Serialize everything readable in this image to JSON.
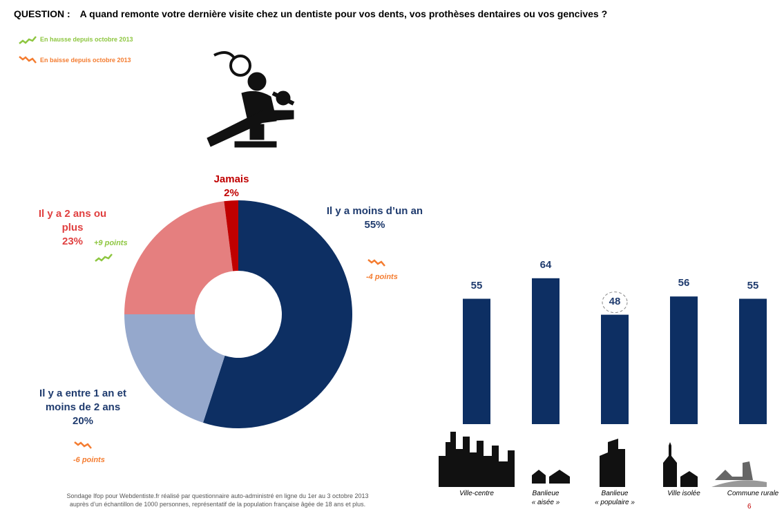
{
  "header": {
    "question_label": "QUESTION :",
    "question": "A quand remonte votre dernière visite chez un dentiste pour vos dents, vos prothèses dentaires ou vos gencives ?"
  },
  "legend": [
    {
      "name": "En hausse depuis octobre 2013",
      "color": "#8dc63f"
    },
    {
      "name": "En baisse depuis octobre 2013",
      "color": "#f47c30"
    }
  ],
  "chart_data": [
    {
      "type": "pie",
      "donut": true,
      "categories": [
        "Il y a moins d’un an",
        "Il y a entre 1 an et moins de 2 ans",
        "Il y a 2 ans ou plus",
        "Jamais"
      ],
      "values": [
        55,
        20,
        23,
        2
      ],
      "value_labels": [
        "55%",
        "20%",
        "23%",
        "2%"
      ],
      "colors": [
        "#0d2f63",
        "#95a8cc",
        "#e57f7f",
        "#c00000"
      ],
      "label_colors": [
        "#1f3b6e",
        "#1f3b6e",
        "#e04040",
        "#c00000"
      ],
      "change_labels": [
        "-4 points",
        "-6 points",
        "+9 points",
        null
      ]
    },
    {
      "type": "bar",
      "categories": [
        [
          "Ville-centre"
        ],
        [
          "Banlieue",
          "« aisée »"
        ],
        [
          "Banlieue",
          "« populaire »"
        ],
        [
          "Ville isolée"
        ],
        [
          "Commune rurale"
        ]
      ],
      "values": [
        55,
        64,
        48,
        56,
        55
      ],
      "color": "#0d2f63"
    }
  ],
  "footer": {
    "note": [
      "Sondage Ifop pour Webdentiste.fr réalisé par questionnaire auto-administré en ligne du 1er au 3 octobre 2013",
      "auprès d’un échantillon de 1000 personnes, représentatif de la population française âgée de 18 ans et plus."
    ],
    "page": "6"
  }
}
